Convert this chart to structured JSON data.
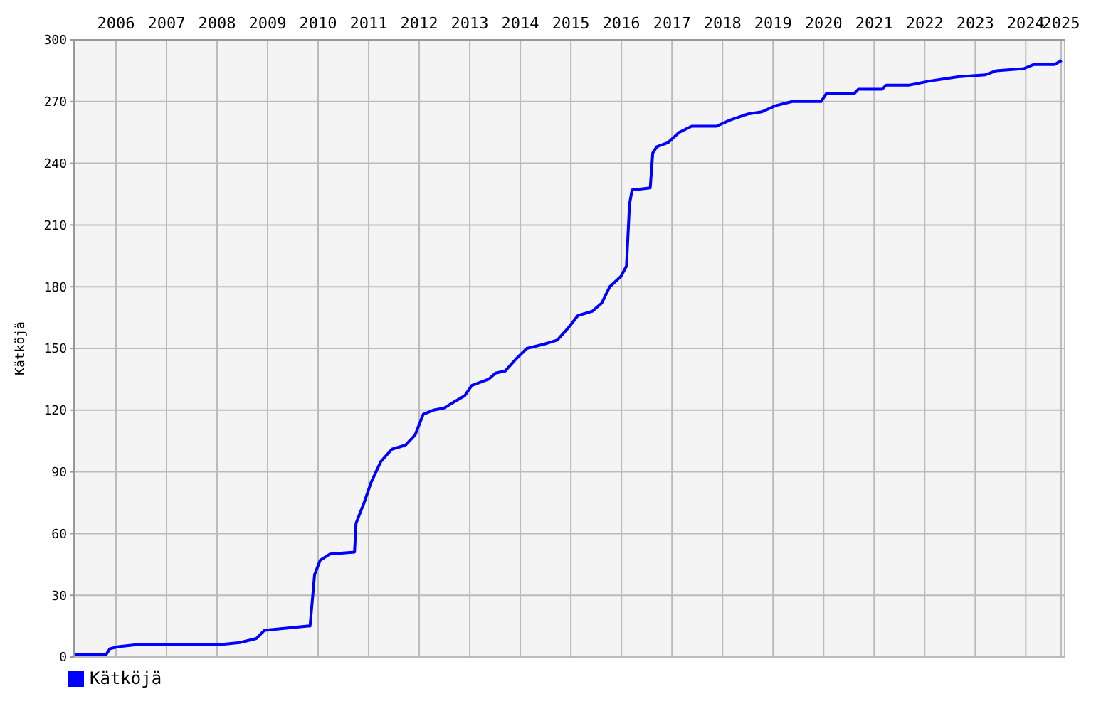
{
  "chart_data": {
    "type": "line",
    "ylabel": "Kätköjä",
    "xlim": [
      2005.67,
      2025.27
    ],
    "xticks": [
      {
        "value": 2006.5,
        "label": "2006"
      },
      {
        "value": 2007.5,
        "label": "2007"
      },
      {
        "value": 2008.5,
        "label": "2008"
      },
      {
        "value": 2009.5,
        "label": "2009"
      },
      {
        "value": 2010.5,
        "label": "2010"
      },
      {
        "value": 2011.5,
        "label": "2011"
      },
      {
        "value": 2012.5,
        "label": "2012"
      },
      {
        "value": 2013.5,
        "label": "2013"
      },
      {
        "value": 2014.5,
        "label": "2014"
      },
      {
        "value": 2015.5,
        "label": "2015"
      },
      {
        "value": 2016.5,
        "label": "2016"
      },
      {
        "value": 2017.5,
        "label": "2017"
      },
      {
        "value": 2018.5,
        "label": "2018"
      },
      {
        "value": 2019.5,
        "label": "2019"
      },
      {
        "value": 2020.5,
        "label": "2020"
      },
      {
        "value": 2021.5,
        "label": "2021"
      },
      {
        "value": 2022.5,
        "label": "2022"
      },
      {
        "value": 2023.5,
        "label": "2023"
      },
      {
        "value": 2024.5,
        "label": "2024"
      },
      {
        "value": 2025.2,
        "label": "2025"
      }
    ],
    "ylim": [
      0,
      300
    ],
    "yticks": [
      0,
      30,
      60,
      90,
      120,
      150,
      180,
      210,
      240,
      270,
      300
    ],
    "grid": true,
    "legend": "bottom",
    "marker": "none",
    "series": [
      {
        "name": "Kätköjä",
        "color": "#0000ff",
        "x": [
          2005.67,
          2006.3,
          2006.38,
          2006.55,
          2006.9,
          2008.54,
          2008.95,
          2009.28,
          2009.44,
          2010.29,
          2010.34,
          2010.43,
          2010.54,
          2010.73,
          2011.22,
          2011.25,
          2011.41,
          2011.55,
          2011.74,
          2011.96,
          2012.23,
          2012.42,
          2012.58,
          2012.78,
          2012.99,
          2013.19,
          2013.4,
          2013.54,
          2013.87,
          2014.01,
          2014.2,
          2014.42,
          2014.63,
          2014.96,
          2015.23,
          2015.45,
          2015.64,
          2015.92,
          2016.11,
          2016.27,
          2016.49,
          2016.6,
          2016.66,
          2016.71,
          2017.07,
          2017.12,
          2017.2,
          2017.42,
          2017.64,
          2017.89,
          2018.38,
          2018.65,
          2019.01,
          2019.28,
          2019.55,
          2019.88,
          2020.45,
          2020.56,
          2021.11,
          2021.19,
          2021.66,
          2021.74,
          2022.2,
          2022.61,
          2023.16,
          2023.7,
          2023.92,
          2024.46,
          2024.66,
          2025.07,
          2025.21
        ],
        "values": [
          1,
          1,
          4,
          5,
          6,
          6,
          7,
          9,
          13,
          15,
          15,
          40,
          47,
          50,
          51,
          65,
          75,
          85,
          95,
          101,
          103,
          108,
          118,
          120,
          121,
          124,
          127,
          132,
          135,
          138,
          139,
          145,
          150,
          152,
          154,
          160,
          166,
          168,
          172,
          180,
          185,
          190,
          220,
          227,
          228,
          245,
          248,
          250,
          255,
          258,
          258,
          261,
          264,
          265,
          268,
          270,
          270,
          274,
          274,
          276,
          276,
          278,
          278,
          280,
          282,
          283,
          285,
          286,
          288,
          288,
          290
        ]
      }
    ]
  }
}
